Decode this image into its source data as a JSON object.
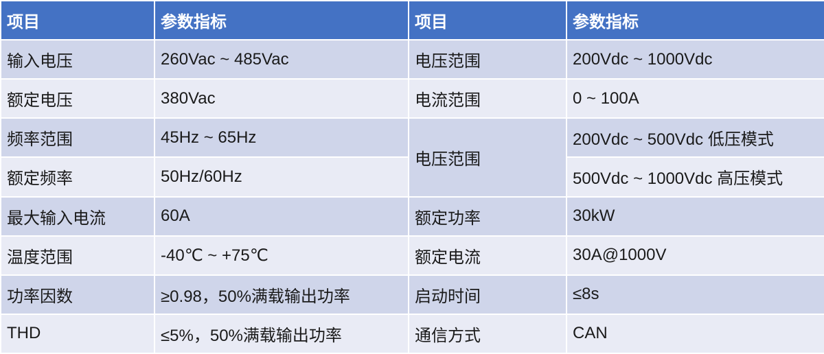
{
  "header": [
    "项目",
    "参数指标",
    "项目",
    "参数指标"
  ],
  "rows": [
    {
      "left_item": "输入电压",
      "left_value": "260Vac ~ 485Vac",
      "right_item": "电压范围",
      "right_value": "200Vdc ~ 1000Vdc"
    },
    {
      "left_item": "额定电压",
      "left_value": "380Vac",
      "right_item": "电流范围",
      "right_value": "0 ~ 100A"
    },
    {
      "left_item": "频率范围",
      "left_value": "45Hz ~ 65Hz",
      "right_item": "电压范围",
      "right_value": "200Vdc ~ 500Vdc 低压模式"
    },
    {
      "left_item": "额定频率",
      "left_value": "50Hz/60Hz",
      "right_value": "500Vdc ~ 1000Vdc 高压模式"
    },
    {
      "left_item": "最大输入电流",
      "left_value": "60A",
      "right_item": "额定功率",
      "right_value": "30kW"
    },
    {
      "left_item": "温度范围",
      "left_value": "-40℃ ~ +75℃",
      "right_item": "额定电流",
      "right_value": "30A@1000V"
    },
    {
      "left_item": "功率因数",
      "left_value": "≥0.98，50%满载输出功率",
      "right_item": "启动时间",
      "right_value": "≤8s"
    },
    {
      "left_item": "THD",
      "left_value": "≤5%，50%满载输出功率",
      "right_item": "通信方式",
      "right_value": "CAN"
    }
  ],
  "colors": {
    "header": "#4472C4",
    "row_dark": "#CFD5EA",
    "row_light": "#E9EBF5"
  }
}
